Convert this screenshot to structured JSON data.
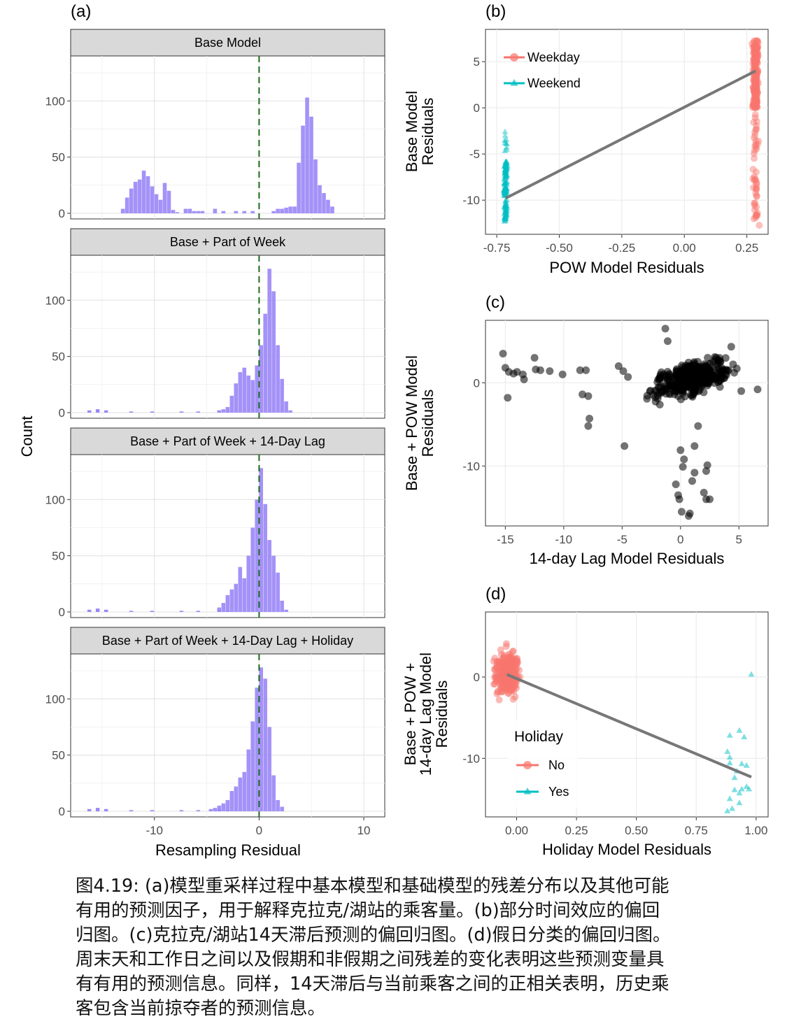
{
  "chart_data": [
    {
      "panel_label": "(a)",
      "type": "bar",
      "ylabel": "Count",
      "xlabel": "Resampling Residual",
      "x_ticks": [
        -10,
        0,
        10
      ],
      "y_ticks": [
        0,
        50,
        100
      ],
      "xlim": [
        -18,
        12
      ],
      "ylim": [
        -5,
        140
      ],
      "bin_start": -13.2,
      "bin_width": 0.4,
      "reference_line_x": 0,
      "bar_color": "#9a86f7",
      "facets": [
        {
          "title": "Base Model",
          "counts": [
            4,
            14,
            22,
            28,
            30,
            38,
            33,
            24,
            17,
            12,
            27,
            20,
            3,
            1,
            0,
            4,
            4,
            2,
            2,
            2,
            0,
            0,
            4,
            0,
            2,
            0,
            0,
            2,
            0,
            2,
            0,
            2,
            0,
            0,
            0,
            0,
            2,
            4,
            4,
            5,
            6,
            6,
            45,
            78,
            103,
            86,
            48,
            25,
            18,
            12,
            6
          ]
        },
        {
          "title": "Base + Part of Week",
          "counts": [
            3,
            5,
            15,
            26,
            36,
            40,
            33,
            29,
            42,
            60,
            88,
            128,
            108,
            60,
            30,
            10,
            2
          ]
        },
        {
          "title": "Base + Part of Week + 14-Day Lag",
          "counts": [
            4,
            8,
            15,
            20,
            25,
            40,
            30,
            50,
            75,
            100,
            128,
            96,
            64,
            50,
            35,
            10,
            2
          ]
        },
        {
          "title": "Base + Part of Week + 14-Day Lag + Holiday",
          "counts": [
            2,
            3,
            5,
            7,
            10,
            18,
            22,
            30,
            35,
            55,
            80,
            110,
            128,
            118,
            75,
            32,
            10,
            4
          ]
        }
      ]
    },
    {
      "panel_label": "(b)",
      "type": "scatter",
      "xlabel": "POW Model Residuals",
      "ylabel": "Base Model Residuals",
      "x_ticks": [
        -0.75,
        -0.5,
        -0.25,
        0.0,
        0.25
      ],
      "x_tick_labels": [
        "-0.75",
        "-0.50",
        "-0.25",
        "0.00",
        "0.25"
      ],
      "y_ticks": [
        -10,
        -5,
        0,
        5
      ],
      "xlim": [
        -0.795,
        0.335
      ],
      "ylim": [
        -13.7,
        8.5
      ],
      "legend": {
        "placement": "top-left",
        "entries": [
          "Weekday",
          "Weekend"
        ]
      },
      "series": [
        {
          "name": "Weekday",
          "x_center": 0.285,
          "x_spread": 0.012,
          "y_min": -12.8,
          "y_max": 7.4,
          "color": "#f8766d",
          "shape": "circle"
        },
        {
          "name": "Weekend",
          "x_center": -0.715,
          "x_spread": 0.008,
          "y_min": -12.4,
          "y_max": -2.4,
          "color": "#00bfc4",
          "shape": "triangle"
        }
      ],
      "fit_line": {
        "x": [
          -0.715,
          0.285
        ],
        "y": [
          -9.8,
          4.0
        ]
      }
    },
    {
      "panel_label": "(c)",
      "type": "scatter",
      "xlabel": "14-day Lag Model Residuals",
      "ylabel": "Base + POW Model Residuals",
      "x_ticks": [
        -15,
        -10,
        -5,
        0,
        5
      ],
      "y_ticks": [
        -10,
        0
      ],
      "xlim": [
        -16.7,
        7.5
      ],
      "ylim": [
        -17.2,
        7.5
      ],
      "point_color": "#000000",
      "cluster": {
        "x_center": 0.8,
        "y_center": 0.5,
        "x_spread": 2.8,
        "y_spread": 1.7
      },
      "outliers": [
        [
          -15.2,
          3.5
        ],
        [
          -15.0,
          1.8
        ],
        [
          -14.7,
          1.3
        ],
        [
          -14.3,
          1.1
        ],
        [
          -14.0,
          1.3
        ],
        [
          -13.5,
          1.0
        ],
        [
          -13.4,
          0.4
        ],
        [
          -14.8,
          -1.8
        ],
        [
          -12.5,
          3.0
        ],
        [
          -12.4,
          1.6
        ],
        [
          -12.0,
          1.5
        ],
        [
          -11.2,
          1.4
        ],
        [
          -10.1,
          1.0
        ],
        [
          -8.6,
          1.5
        ],
        [
          -8.1,
          1.5
        ],
        [
          -8.4,
          -1.4
        ],
        [
          -7.9,
          -1.6
        ],
        [
          -7.8,
          -4.3
        ],
        [
          -7.9,
          -5.2
        ],
        [
          -5.3,
          2.0
        ],
        [
          -4.9,
          1.4
        ],
        [
          -4.5,
          0.7
        ],
        [
          -4.8,
          -7.6
        ],
        [
          -1.3,
          6.5
        ],
        [
          -1.1,
          5.0
        ],
        [
          0.0,
          -8.1
        ],
        [
          0.3,
          -9.2
        ],
        [
          0.2,
          -10.1
        ],
        [
          -0.4,
          -12.2
        ],
        [
          -0.2,
          -13.5
        ],
        [
          -0.1,
          -14.0
        ],
        [
          0.1,
          -15.5
        ],
        [
          0.8,
          -15.7
        ],
        [
          0.7,
          -16.0
        ],
        [
          1.0,
          -11.8
        ],
        [
          1.2,
          -10.8
        ],
        [
          1.2,
          -7.6
        ],
        [
          1.5,
          -5.2
        ],
        [
          2.0,
          -13.2
        ],
        [
          2.2,
          -14.0
        ],
        [
          2.5,
          -14.0
        ],
        [
          2.3,
          -9.9
        ],
        [
          2.2,
          -10.6
        ],
        [
          4.6,
          1.2
        ],
        [
          5.2,
          -1.0
        ],
        [
          6.6,
          -0.8
        ]
      ]
    },
    {
      "panel_label": "(d)",
      "type": "scatter",
      "xlabel": "Holiday Model Residuals",
      "ylabel": "Base + POW + 14-day Lag Model Residuals",
      "x_ticks": [
        0.0,
        0.25,
        0.5,
        0.75,
        1.0
      ],
      "x_tick_labels": [
        "0.00",
        "0.25",
        "0.50",
        "0.75",
        "1.00"
      ],
      "y_ticks": [
        -10,
        0
      ],
      "xlim": [
        -0.13,
        1.05
      ],
      "ylim": [
        -17.2,
        8.0
      ],
      "legend": {
        "title": "Holiday",
        "placement": "inside-left",
        "entries": [
          "No",
          "Yes"
        ]
      },
      "series": [
        {
          "name": "No",
          "x_center": -0.04,
          "x_spread": 0.05,
          "y_center": 0.5,
          "y_spread": 2.4,
          "color": "#f8766d",
          "shape": "circle"
        },
        {
          "name": "Yes",
          "points": [
            [
              0.98,
              0.3
            ],
            [
              0.93,
              -6.6
            ],
            [
              0.89,
              -7.2
            ],
            [
              0.95,
              -7.4
            ],
            [
              0.88,
              -9.2
            ],
            [
              0.89,
              -9.9
            ],
            [
              0.89,
              -10.6
            ],
            [
              0.94,
              -10.7
            ],
            [
              0.96,
              -10.9
            ],
            [
              0.91,
              -12.4
            ],
            [
              0.94,
              -13.8
            ],
            [
              0.96,
              -13.5
            ],
            [
              0.91,
              -13.9
            ],
            [
              0.93,
              -14.3
            ],
            [
              0.89,
              -15.0
            ],
            [
              0.93,
              -15.5
            ],
            [
              0.88,
              -16.5
            ],
            [
              0.9,
              -16.2
            ],
            [
              0.97,
              -13.8
            ],
            [
              0.92,
              -11.6
            ]
          ],
          "color": "#00bfc4",
          "shape": "triangle"
        }
      ],
      "fit_line": {
        "x": [
          -0.04,
          0.98
        ],
        "y": [
          0.3,
          -12.3
        ]
      }
    }
  ],
  "caption": {
    "lines": [
      "图4.19: (a)模型重采样过程中基本模型和基础模型的残差分布以及其他可能",
      "有用的预测因子，用于解释克拉克/湖站的乘客量。(b)部分时间效应的偏回",
      "归图。(c)克拉克/湖站14天滞后预测的偏回归图。(d)假日分类的偏回归图。",
      "周末天和工作日之间以及假期和非假期之间残差的变化表明这些预测变量具",
      "有有用的预测信息。同样，14天滞后与当前乘客之间的正相关表明，历史乘",
      "客包含当前掠夺者的预测信息。"
    ]
  }
}
